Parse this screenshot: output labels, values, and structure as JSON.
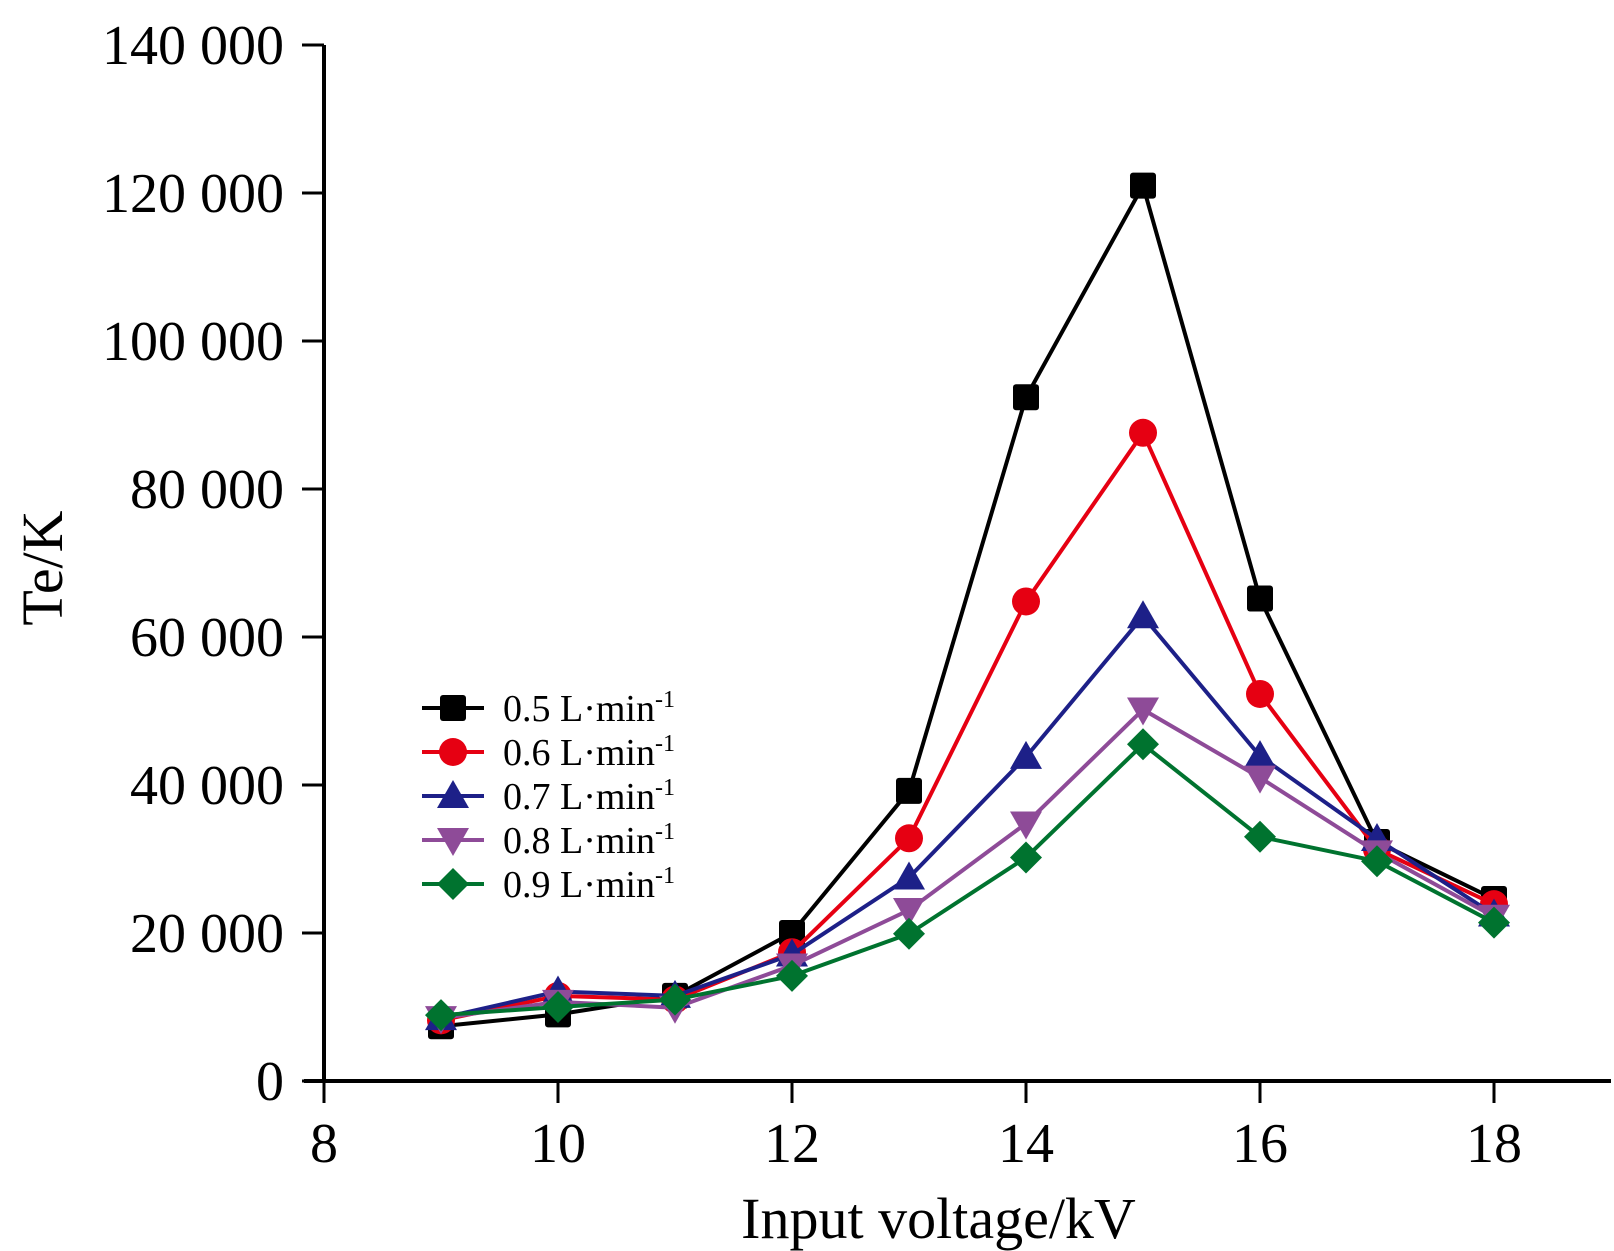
{
  "chart_data": {
    "type": "line",
    "title": "",
    "xlabel": "Input voltage/kV",
    "ylabel": "Te/K",
    "xlim": [
      8,
      19
    ],
    "ylim": [
      0,
      140000
    ],
    "grid": false,
    "legend_position": "center-left",
    "x_ticks": [
      8,
      10,
      12,
      14,
      16,
      18
    ],
    "x_tick_labels": [
      "8",
      "10",
      "12",
      "14",
      "16",
      "18"
    ],
    "y_ticks": [
      0,
      20000,
      40000,
      60000,
      80000,
      100000,
      120000,
      140000
    ],
    "y_tick_labels": [
      "0",
      "20 000",
      "40 000",
      "60 000",
      "80 000",
      "100 000",
      "120 000",
      "140 000"
    ],
    "x": [
      9,
      10,
      11,
      12,
      13,
      14,
      15,
      16,
      17,
      18
    ],
    "series": [
      {
        "name": "0.5 L·min",
        "name_sup": "-1",
        "color": "#000000",
        "marker": "square",
        "values": [
          7400,
          9000,
          11500,
          20000,
          39200,
          92400,
          121000,
          65200,
          32300,
          24600
        ]
      },
      {
        "name": "0.6 L·min",
        "name_sup": "-1",
        "color": "#e60012",
        "marker": "circle",
        "values": [
          8200,
          11500,
          11000,
          17400,
          32800,
          64800,
          87600,
          52300,
          31300,
          23900
        ]
      },
      {
        "name": "0.7 L·min",
        "name_sup": "-1",
        "color": "#1d2088",
        "marker": "triangle-up",
        "values": [
          8500,
          12100,
          11500,
          17100,
          27500,
          43800,
          62800,
          43900,
          32700,
          22500
        ]
      },
      {
        "name": "0.8 L·min",
        "name_sup": "-1",
        "color": "#8e4b98",
        "marker": "triangle-down",
        "values": [
          8500,
          10700,
          9900,
          15600,
          23100,
          34800,
          50200,
          41000,
          30900,
          22200
        ]
      },
      {
        "name": "0.9 L·min",
        "name_sup": "-1",
        "color": "#00732f",
        "marker": "diamond",
        "values": [
          8900,
          10000,
          11000,
          14200,
          19900,
          30200,
          45500,
          33000,
          29700,
          21400
        ]
      }
    ]
  }
}
